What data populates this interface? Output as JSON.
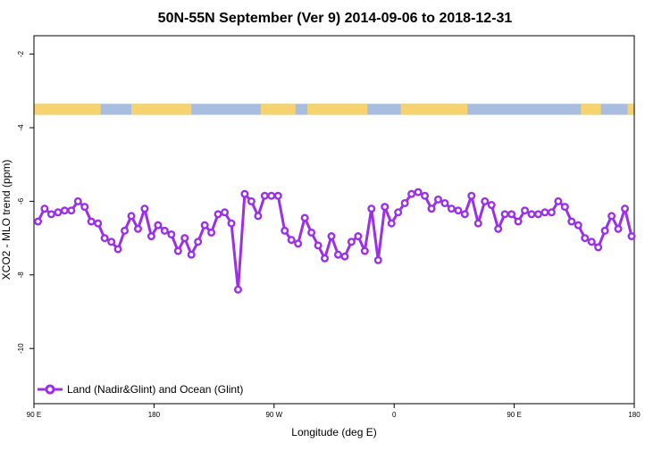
{
  "colors": {
    "series": "#9b30e8",
    "land": "#f7d36f",
    "ocean": "#a8bddf"
  },
  "chart_data": {
    "type": "line",
    "title": "50N-55N September (Ver 9)   2014-09-06 to 2018-12-31",
    "xlabel": "Longitude (deg E)",
    "ylabel": "XCO2 - MLO trend (ppm)",
    "x_ticks": [
      {
        "value": 90,
        "label": "90 E"
      },
      {
        "value": 180,
        "label": "180"
      },
      {
        "value": 270,
        "label": "90 W"
      },
      {
        "value": 360,
        "label": "0"
      },
      {
        "value": 450,
        "label": "90 E"
      },
      {
        "value": 540,
        "label": "180"
      }
    ],
    "y_ticks": [
      {
        "value": -2,
        "label": "-2"
      },
      {
        "value": -4,
        "label": "-4"
      },
      {
        "value": -6,
        "label": "-6"
      },
      {
        "value": -8,
        "label": "-8"
      },
      {
        "value": -10,
        "label": "-10"
      }
    ],
    "xlim": [
      90,
      540
    ],
    "ylim": [
      -11.5,
      -1.5
    ],
    "grid": false,
    "legend_position": "bottom-left",
    "landmask_band": {
      "y_range": [
        -3.65,
        -3.35
      ],
      "land_segments": [
        [
          90,
          140
        ],
        [
          163,
          208
        ],
        [
          260,
          286
        ],
        [
          295,
          340
        ],
        [
          365,
          415
        ],
        [
          500,
          515
        ],
        [
          535,
          540
        ]
      ],
      "land_color": "#f7d36f",
      "ocean_color": "#a8bddf"
    },
    "series": [
      {
        "name": "Land (Nadir&Glint) and Ocean (Glint)",
        "color": "#9b30e8",
        "x": [
          93,
          98,
          103,
          108,
          113,
          118,
          123,
          128,
          133,
          138,
          143,
          148,
          153,
          158,
          163,
          168,
          173,
          178,
          183,
          188,
          193,
          198,
          203,
          208,
          213,
          218,
          223,
          228,
          233,
          238,
          243,
          248,
          253,
          258,
          263,
          268,
          273,
          278,
          283,
          288,
          293,
          298,
          303,
          308,
          313,
          318,
          323,
          328,
          333,
          338,
          343,
          348,
          353,
          358,
          363,
          368,
          373,
          378,
          383,
          388,
          393,
          398,
          403,
          408,
          413,
          418,
          423,
          428,
          433,
          438,
          443,
          448,
          453,
          458,
          463,
          468,
          473,
          478,
          483,
          488,
          493,
          498,
          503,
          508,
          513,
          518,
          523,
          528,
          533,
          538
        ],
        "y": [
          -6.55,
          -6.2,
          -6.35,
          -6.3,
          -6.25,
          -6.25,
          -6.0,
          -6.15,
          -6.55,
          -6.6,
          -7.0,
          -7.1,
          -7.3,
          -6.8,
          -6.4,
          -6.75,
          -6.2,
          -6.95,
          -6.65,
          -6.8,
          -6.9,
          -7.35,
          -7.0,
          -7.45,
          -7.1,
          -6.65,
          -6.85,
          -6.35,
          -6.3,
          -6.6,
          -8.4,
          -5.8,
          -6.0,
          -6.4,
          -5.85,
          -5.85,
          -5.85,
          -6.8,
          -7.05,
          -7.15,
          -6.45,
          -6.85,
          -7.2,
          -7.55,
          -6.95,
          -7.45,
          -7.5,
          -7.1,
          -6.95,
          -7.35,
          -6.2,
          -7.6,
          -6.15,
          -6.6,
          -6.3,
          -6.05,
          -5.8,
          -5.75,
          -5.85,
          -6.2,
          -5.95,
          -6.05,
          -6.2,
          -6.25,
          -6.35,
          -5.85,
          -6.6,
          -6.0,
          -6.1,
          -6.75,
          -6.35,
          -6.35,
          -6.55,
          -6.25,
          -6.35,
          -6.35,
          -6.3,
          -6.3,
          -6.0,
          -6.15,
          -6.55,
          -6.65,
          -7.0,
          -7.1,
          -7.25,
          -6.8,
          -6.4,
          -6.75,
          -6.2,
          -6.95
        ]
      }
    ]
  }
}
